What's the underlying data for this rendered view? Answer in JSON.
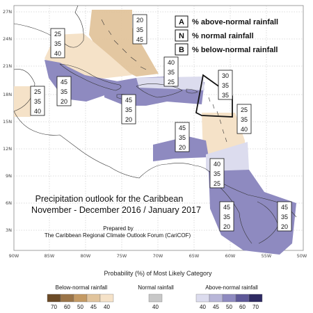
{
  "map": {
    "title_line1": "Precipitation outlook for the Caribbean",
    "title_line2": "November - December 2016 / January 2017",
    "prepared_by_line1": "Prepared by",
    "prepared_by_line2": "The Caribbean Regional Climate Outlook Forum (CariCOF)",
    "lat_ticks": [
      "27N",
      "24N",
      "21N",
      "18N",
      "15N",
      "12N",
      "9N",
      "6N",
      "3N"
    ],
    "lon_ticks": [
      "90W",
      "85W",
      "80W",
      "75W",
      "70W",
      "65W",
      "60W",
      "55W",
      "50W"
    ]
  },
  "legend": {
    "items": [
      {
        "letter": "A",
        "text": "% above-normal rainfall"
      },
      {
        "letter": "N",
        "text": "% normal rainfall"
      },
      {
        "letter": "B",
        "text": "% below-normal rainfall"
      }
    ]
  },
  "regions": [
    {
      "id": "bahamas-north",
      "above": "20",
      "normal": "35",
      "below": "45"
    },
    {
      "id": "cuba-west",
      "above": "25",
      "normal": "35",
      "below": "40"
    },
    {
      "id": "turks-caicos",
      "above": "40",
      "normal": "35",
      "below": "25"
    },
    {
      "id": "lesser-antilles-north",
      "above": "30",
      "normal": "35",
      "below": "35"
    },
    {
      "id": "cuba-central",
      "above": "45",
      "normal": "35",
      "below": "20"
    },
    {
      "id": "belize",
      "above": "25",
      "normal": "35",
      "below": "40"
    },
    {
      "id": "greater-antilles",
      "above": "45",
      "normal": "35",
      "below": "20"
    },
    {
      "id": "windward-islands",
      "above": "25",
      "normal": "35",
      "below": "40"
    },
    {
      "id": "abc-islands",
      "above": "45",
      "normal": "35",
      "below": "20"
    },
    {
      "id": "trinidad",
      "above": "40",
      "normal": "35",
      "below": "25"
    },
    {
      "id": "guyana",
      "above": "45",
      "normal": "35",
      "below": "20"
    },
    {
      "id": "french-guiana",
      "above": "45",
      "normal": "35",
      "below": "20"
    }
  ],
  "scale": {
    "title": "Probability (%) of Most Likely Category",
    "below_label": "Below-normal rainfall",
    "normal_label": "Normal rainfall",
    "above_label": "Above-normal rainfall",
    "below_values": [
      "70",
      "60",
      "50",
      "45",
      "40"
    ],
    "normal_values": [
      "40"
    ],
    "above_values": [
      "40",
      "45",
      "50",
      "60",
      "70"
    ],
    "below_colors": [
      "#6b4a26",
      "#9a7448",
      "#c49a64",
      "#e1c49c",
      "#f5e2c8"
    ],
    "normal_colors": [
      "#c8c8c8"
    ],
    "above_colors": [
      "#dcdcee",
      "#b8b6d8",
      "#8e8ac0",
      "#5e5898",
      "#2e2a62"
    ]
  }
}
